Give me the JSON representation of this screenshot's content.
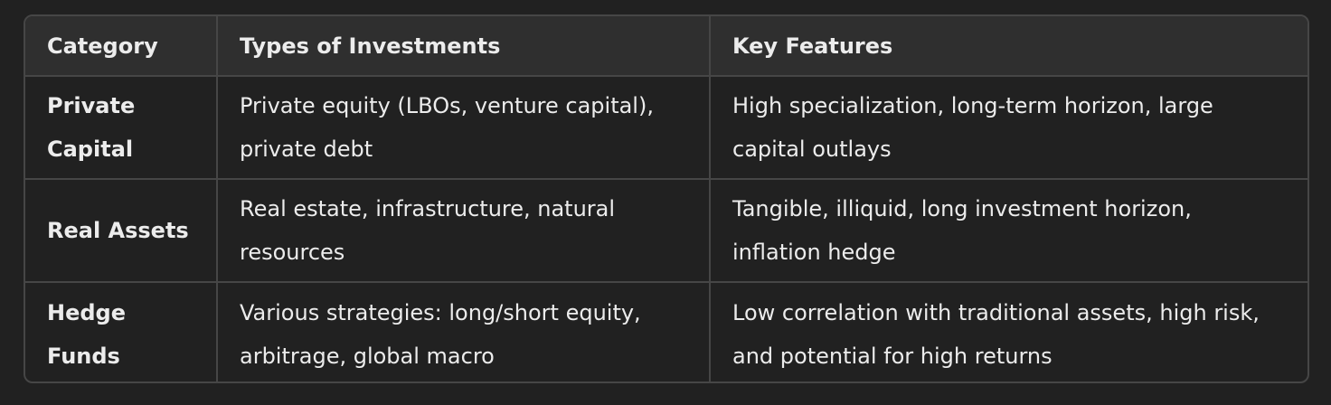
{
  "table": {
    "headers": [
      "Category",
      "Types of Investments",
      "Key Features"
    ],
    "rows": [
      {
        "category": "Private Capital",
        "types": "Private equity (LBOs, venture capital), private debt",
        "features": "High specialization, long-term horizon, large capital outlays"
      },
      {
        "category": "Real Assets",
        "types": "Real estate, infrastructure, natural resources",
        "features": "Tangible, illiquid, long investment horizon, inflation hedge"
      },
      {
        "category": "Hedge Funds",
        "types": "Various strategies: long/short equity, arbitrage, global macro",
        "features": "Low correlation with traditional assets, high risk, and potential for high returns"
      }
    ]
  }
}
